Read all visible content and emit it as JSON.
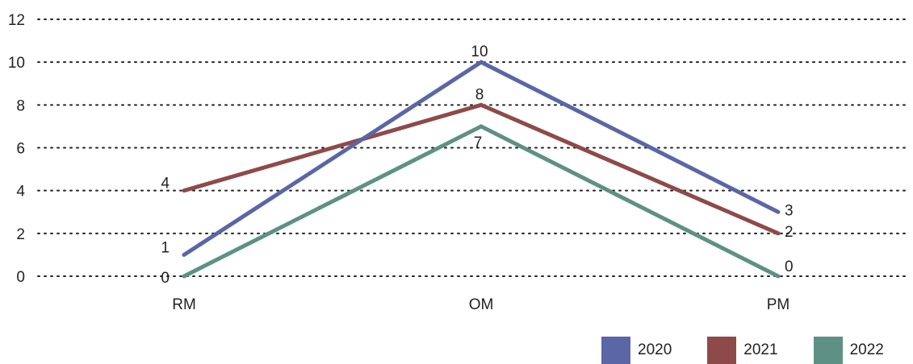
{
  "chart_data": {
    "type": "line",
    "categories": [
      "RM",
      "OM",
      "PM"
    ],
    "ylim": [
      0,
      12
    ],
    "yticks": [
      0,
      2,
      4,
      6,
      8,
      10,
      12
    ],
    "grid": true,
    "legend_position": "bottom-right",
    "series": [
      {
        "name": "2020",
        "values": [
          1,
          10,
          3
        ],
        "color": "#5b66a6"
      },
      {
        "name": "2021",
        "values": [
          4,
          8,
          2
        ],
        "color": "#8e4a49"
      },
      {
        "name": "2022",
        "values": [
          0,
          7,
          0
        ],
        "color": "#5e9183"
      }
    ]
  }
}
